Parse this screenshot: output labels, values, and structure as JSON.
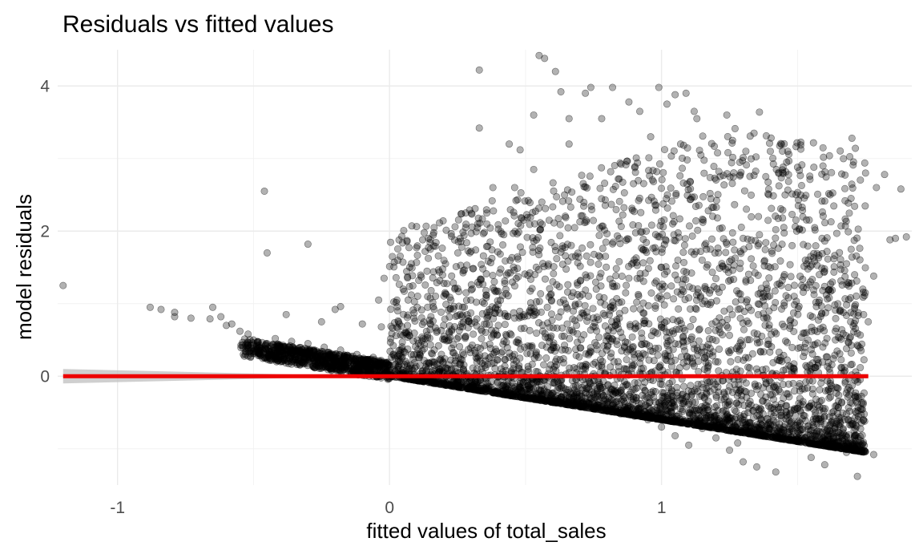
{
  "chart_data": {
    "type": "scatter",
    "title": "Residuals vs fitted values",
    "xlabel": "fitted values of total_sales",
    "ylabel": "model residuals",
    "xlim": [
      -1.22,
      1.92
    ],
    "ylim": [
      -1.5,
      4.5
    ],
    "x_ticks": [
      -1,
      0,
      1
    ],
    "x_tick_labels": [
      "-1",
      "0",
      "1"
    ],
    "y_ticks": [
      0,
      2,
      4
    ],
    "y_tick_labels": [
      "0",
      "2",
      "4"
    ],
    "grid": true,
    "point_color": "#000000",
    "point_opacity": 0.3,
    "smooth_line_color": "#ee0000",
    "ribbon_color": "#bfbfbf",
    "series": [
      {
        "points": [
          [
            -1.2,
            1.25
          ],
          [
            -0.88,
            0.95
          ],
          [
            -0.84,
            0.92
          ],
          [
            -0.79,
            0.88
          ],
          [
            -0.79,
            0.82
          ],
          [
            -0.73,
            0.8
          ],
          [
            -0.66,
            0.79
          ],
          [
            -0.65,
            0.95
          ],
          [
            -0.62,
            0.82
          ],
          [
            -0.6,
            0.7
          ],
          [
            -0.58,
            0.72
          ],
          [
            -0.55,
            0.62
          ],
          [
            -0.46,
            2.55
          ],
          [
            -0.45,
            1.7
          ],
          [
            -0.38,
            0.85
          ],
          [
            -0.3,
            1.82
          ],
          [
            -0.25,
            0.75
          ],
          [
            -0.2,
            0.92
          ],
          [
            -0.18,
            0.96
          ],
          [
            -0.1,
            0.72
          ],
          [
            -0.03,
            0.68
          ],
          [
            0.03,
            0.9
          ],
          [
            0.09,
            0.8
          ],
          [
            -0.04,
            1.05
          ],
          [
            -0.02,
            1.35
          ],
          [
            0.05,
            1.2
          ],
          [
            0.08,
            1.12
          ],
          [
            0.14,
            0.95
          ],
          [
            0.2,
            1.28
          ],
          [
            0.26,
            1.9
          ],
          [
            0.15,
            1.75
          ],
          [
            0.38,
            2.6
          ],
          [
            0.28,
            2.25
          ],
          [
            0.3,
            1.72
          ],
          [
            0.33,
            4.22
          ],
          [
            0.33,
            3.42
          ],
          [
            0.37,
            1.85
          ],
          [
            0.42,
            1.95
          ],
          [
            0.44,
            3.2
          ],
          [
            0.46,
            2.6
          ],
          [
            0.48,
            3.12
          ],
          [
            0.53,
            2.85
          ],
          [
            0.56,
            2.4
          ],
          [
            0.53,
            3.6
          ],
          [
            0.55,
            4.42
          ],
          [
            0.57,
            4.38
          ],
          [
            0.61,
            4.2
          ],
          [
            0.63,
            3.92
          ],
          [
            0.66,
            3.55
          ],
          [
            0.66,
            3.2
          ],
          [
            0.72,
            3.9
          ],
          [
            0.74,
            3.98
          ],
          [
            0.78,
            3.55
          ],
          [
            0.82,
            3.98
          ],
          [
            0.88,
            3.78
          ],
          [
            0.92,
            3.65
          ],
          [
            0.96,
            3.3
          ],
          [
            0.99,
            3.98
          ],
          [
            1.02,
            3.75
          ],
          [
            1.05,
            3.88
          ],
          [
            1.09,
            3.9
          ],
          [
            1.12,
            3.65
          ],
          [
            1.07,
            3.2
          ],
          [
            1.13,
            3.55
          ],
          [
            1.24,
            3.6
          ],
          [
            1.36,
            3.64
          ],
          [
            1.34,
            3.35
          ],
          [
            1.31,
            3.1
          ],
          [
            1.4,
            3.1
          ],
          [
            1.46,
            2.95
          ],
          [
            1.5,
            2.88
          ],
          [
            1.56,
            2.88
          ],
          [
            1.62,
            2.5
          ],
          [
            1.59,
            1.9
          ],
          [
            1.66,
            2.07
          ],
          [
            1.7,
            3.28
          ],
          [
            1.75,
            2.8
          ],
          [
            1.68,
            1.55
          ],
          [
            1.74,
            1.2
          ],
          [
            1.78,
            1.38
          ],
          [
            1.82,
            2.78
          ],
          [
            1.88,
            2.58
          ],
          [
            1.84,
            1.88
          ],
          [
            1.86,
            1.9
          ],
          [
            1.9,
            1.92
          ],
          [
            1.79,
            2.6
          ],
          [
            1.76,
            0.75
          ],
          [
            1.72,
            0.59
          ],
          [
            1.68,
            0.38
          ],
          [
            1.66,
            0.12
          ],
          [
            1.72,
            -0.28
          ],
          [
            1.62,
            -0.1
          ],
          [
            1.6,
            -0.55
          ],
          [
            1.55,
            -1.12
          ],
          [
            1.6,
            -1.22
          ],
          [
            1.68,
            -1.05
          ],
          [
            1.72,
            -1.38
          ],
          [
            1.78,
            -1.08
          ],
          [
            1.65,
            -0.9
          ],
          [
            1.52,
            -0.35
          ],
          [
            1.48,
            0.05
          ],
          [
            1.45,
            -0.7
          ],
          [
            1.42,
            -1.32
          ],
          [
            1.35,
            -1.25
          ],
          [
            1.3,
            -1.18
          ],
          [
            1.28,
            -0.92
          ],
          [
            1.25,
            -1.02
          ],
          [
            1.2,
            -0.85
          ],
          [
            1.15,
            -0.72
          ],
          [
            1.1,
            -0.95
          ],
          [
            1.05,
            -0.82
          ],
          [
            1.0,
            -0.7
          ],
          [
            0.95,
            -0.6
          ],
          [
            0.9,
            -0.55
          ],
          [
            0.85,
            -0.52
          ],
          [
            0.8,
            -0.48
          ],
          [
            0.75,
            -0.45
          ],
          [
            0.7,
            -0.42
          ],
          [
            0.65,
            -0.38
          ],
          [
            0.6,
            -0.35
          ],
          [
            0.55,
            -0.32
          ],
          [
            0.5,
            -0.28
          ],
          [
            0.45,
            -0.25
          ],
          [
            0.4,
            -0.22
          ],
          [
            0.35,
            -0.18
          ],
          [
            0.3,
            -0.15
          ],
          [
            0.25,
            -0.12
          ],
          [
            0.2,
            -0.1
          ],
          [
            0.15,
            -0.07
          ],
          [
            0.1,
            -0.04
          ],
          [
            0.05,
            -0.01
          ],
          [
            0.0,
            0.02
          ],
          [
            -0.05,
            0.06
          ],
          [
            -0.1,
            0.1
          ],
          [
            -0.15,
            0.15
          ],
          [
            -0.2,
            0.2
          ],
          [
            -0.25,
            0.25
          ],
          [
            -0.3,
            0.3
          ],
          [
            -0.35,
            0.35
          ],
          [
            -0.4,
            0.4
          ],
          [
            -0.45,
            0.45
          ],
          [
            -0.5,
            0.5
          ],
          [
            -0.52,
            0.58
          ],
          [
            -0.42,
            0.52
          ],
          [
            -0.36,
            0.48
          ],
          [
            -0.3,
            0.45
          ],
          [
            -0.24,
            0.4
          ],
          [
            -0.18,
            0.36
          ],
          [
            -0.12,
            0.3
          ],
          [
            -0.06,
            0.26
          ],
          [
            0.02,
            0.25
          ],
          [
            0.08,
            0.3
          ],
          [
            0.12,
            0.35
          ],
          [
            0.18,
            0.42
          ],
          [
            0.22,
            0.5
          ],
          [
            0.28,
            0.55
          ],
          [
            0.34,
            0.62
          ],
          [
            0.4,
            0.7
          ],
          [
            0.46,
            0.8
          ],
          [
            0.52,
            0.88
          ],
          [
            0.58,
            0.95
          ],
          [
            0.64,
            1.05
          ],
          [
            0.7,
            1.1
          ],
          [
            0.76,
            1.2
          ],
          [
            0.82,
            1.28
          ],
          [
            0.88,
            1.35
          ],
          [
            0.94,
            1.42
          ],
          [
            1.0,
            1.5
          ],
          [
            1.06,
            1.6
          ],
          [
            1.12,
            1.68
          ],
          [
            1.18,
            1.75
          ],
          [
            1.24,
            1.82
          ],
          [
            1.3,
            1.9
          ],
          [
            1.36,
            1.95
          ],
          [
            1.42,
            2.02
          ],
          [
            1.48,
            1.8
          ],
          [
            1.54,
            1.6
          ],
          [
            1.58,
            1.4
          ],
          [
            1.44,
            1.25
          ],
          [
            1.38,
            1.1
          ],
          [
            1.32,
            0.95
          ],
          [
            1.26,
            0.85
          ],
          [
            1.2,
            0.75
          ],
          [
            1.14,
            0.65
          ],
          [
            1.08,
            0.55
          ],
          [
            1.02,
            0.45
          ],
          [
            0.96,
            0.35
          ],
          [
            0.9,
            0.25
          ],
          [
            0.84,
            0.2
          ],
          [
            0.78,
            0.15
          ],
          [
            0.72,
            0.1
          ],
          [
            0.66,
            0.05
          ],
          [
            0.6,
            0.0
          ],
          [
            0.54,
            -0.05
          ],
          [
            0.48,
            -0.1
          ],
          [
            0.42,
            -0.12
          ],
          [
            0.36,
            -0.1
          ],
          [
            0.3,
            -0.05
          ],
          [
            0.24,
            0.0
          ],
          [
            0.18,
            0.05
          ]
        ]
      }
    ],
    "smooth_line": {
      "x": [
        -1.2,
        1.76
      ],
      "y": [
        0.0,
        0.0
      ]
    }
  }
}
